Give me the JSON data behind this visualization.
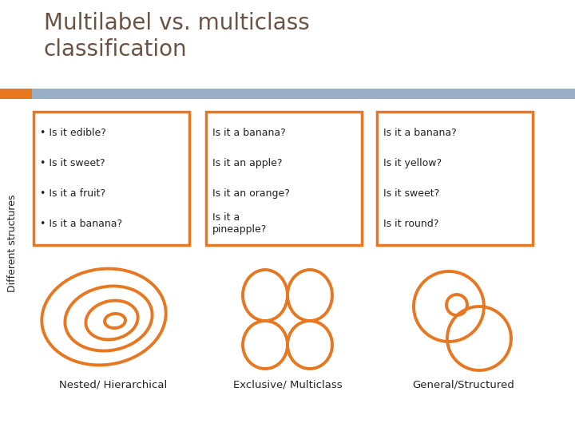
{
  "title_line1": "Multilabel vs. multiclass",
  "title_line2": "classification",
  "title_color": "#6b5344",
  "title_fontsize": 20,
  "bg_color": "#ffffff",
  "header_bar_color": "#9ab0c8",
  "orange": "#E87722",
  "sidebar_text": "Different structures",
  "box1_items": [
    "• Is it edible?",
    "• Is it sweet?",
    "• Is it a fruit?",
    "• Is it a banana?"
  ],
  "box2_items": [
    "Is it a banana?",
    "Is it an apple?",
    "Is it an orange?",
    "Is it a\npineapple?"
  ],
  "box3_items": [
    "Is it a banana?",
    "Is it yellow?",
    "Is it sweet?",
    "Is it round?"
  ],
  "label1": "Nested/ Hierarchical",
  "label2": "Exclusive/ Multiclass",
  "label3": "General/Structured",
  "text_color": "#222222"
}
